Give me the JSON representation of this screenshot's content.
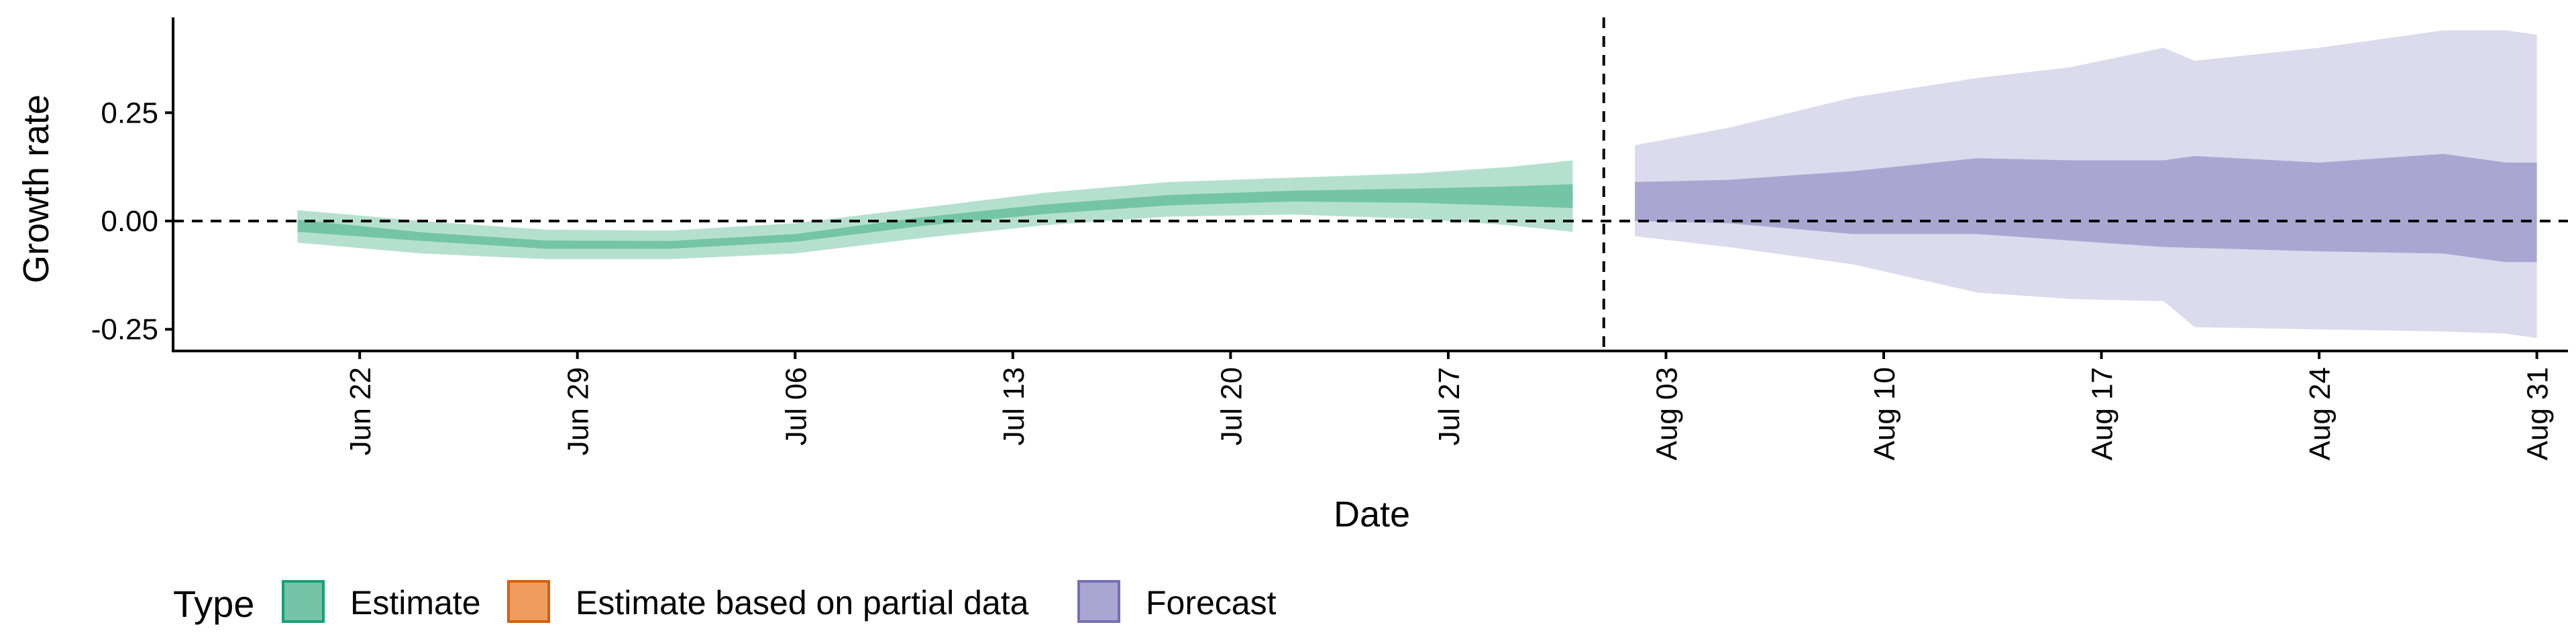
{
  "chart_data": {
    "type": "area",
    "xlabel": "Date",
    "ylabel": "Growth rate",
    "ylim": [
      -0.3,
      0.47
    ],
    "xlim": [
      "2020-06-16",
      "2020-09-01"
    ],
    "grid": false,
    "legend_position": "bottom-left",
    "y_ticks": [
      {
        "value": 0.25,
        "label": "0.25"
      },
      {
        "value": 0.0,
        "label": "0.00"
      },
      {
        "value": -0.25,
        "label": "-0.25"
      }
    ],
    "x_ticks": [
      {
        "date": "2020-06-22",
        "label": "Jun 22"
      },
      {
        "date": "2020-06-29",
        "label": "Jun 29"
      },
      {
        "date": "2020-07-06",
        "label": "Jul 06"
      },
      {
        "date": "2020-07-13",
        "label": "Jul 13"
      },
      {
        "date": "2020-07-20",
        "label": "Jul 20"
      },
      {
        "date": "2020-07-27",
        "label": "Jul 27"
      },
      {
        "date": "2020-08-03",
        "label": "Aug 03"
      },
      {
        "date": "2020-08-10",
        "label": "Aug 10"
      },
      {
        "date": "2020-08-17",
        "label": "Aug 17"
      },
      {
        "date": "2020-08-24",
        "label": "Aug 24"
      },
      {
        "date": "2020-08-31",
        "label": "Aug 31"
      }
    ],
    "reference_lines": {
      "horizontal": 0.0,
      "vertical_date": "2020-08-01"
    },
    "legend": {
      "title": "Type",
      "items": [
        {
          "label": "Estimate",
          "fill": "#74c4a8",
          "stroke": "#1b9e77"
        },
        {
          "label": "Estimate based on partial data",
          "fill": "#ee9d5f",
          "stroke": "#d95f02"
        },
        {
          "label": "Forecast",
          "fill": "#a9a6d2",
          "stroke": "#7570b3"
        }
      ]
    },
    "series": [
      {
        "name": "Estimate",
        "outer_color": "#b5e0d0",
        "inner_color": "#74c4a8",
        "points": [
          {
            "date": "2020-06-20",
            "outer": [
              -0.05,
              0.025
            ],
            "inner": [
              -0.025,
              0.003
            ]
          },
          {
            "date": "2020-06-24",
            "outer": [
              -0.075,
              0.0
            ],
            "inner": [
              -0.046,
              -0.026
            ]
          },
          {
            "date": "2020-06-28",
            "outer": [
              -0.088,
              -0.02
            ],
            "inner": [
              -0.064,
              -0.045
            ]
          },
          {
            "date": "2020-07-02",
            "outer": [
              -0.088,
              -0.022
            ],
            "inner": [
              -0.064,
              -0.046
            ]
          },
          {
            "date": "2020-07-06",
            "outer": [
              -0.075,
              -0.005
            ],
            "inner": [
              -0.048,
              -0.03
            ]
          },
          {
            "date": "2020-07-10",
            "outer": [
              -0.04,
              0.03
            ],
            "inner": [
              -0.012,
              0.008
            ]
          },
          {
            "date": "2020-07-14",
            "outer": [
              -0.01,
              0.065
            ],
            "inner": [
              0.016,
              0.038
            ]
          },
          {
            "date": "2020-07-18",
            "outer": [
              0.01,
              0.09
            ],
            "inner": [
              0.036,
              0.06
            ]
          },
          {
            "date": "2020-07-22",
            "outer": [
              0.015,
              0.1
            ],
            "inner": [
              0.045,
              0.07
            ]
          },
          {
            "date": "2020-07-26",
            "outer": [
              0.005,
              0.11
            ],
            "inner": [
              0.042,
              0.075
            ]
          },
          {
            "date": "2020-07-29",
            "outer": [
              -0.01,
              0.125
            ],
            "inner": [
              0.035,
              0.08
            ]
          },
          {
            "date": "2020-07-31",
            "outer": [
              -0.025,
              0.14
            ],
            "inner": [
              0.03,
              0.085
            ]
          }
        ]
      },
      {
        "name": "Forecast",
        "outer_color": "#dcdaed",
        "inner_color": "#a9a6d2",
        "points": [
          {
            "date": "2020-08-02",
            "outer": [
              -0.035,
              0.175
            ],
            "inner": [
              0.0,
              0.09
            ]
          },
          {
            "date": "2020-08-05",
            "outer": [
              -0.06,
              0.215
            ],
            "inner": [
              -0.005,
              0.095
            ]
          },
          {
            "date": "2020-08-09",
            "outer": [
              -0.1,
              0.285
            ],
            "inner": [
              -0.03,
              0.115
            ]
          },
          {
            "date": "2020-08-13",
            "outer": [
              -0.165,
              0.33
            ],
            "inner": [
              -0.03,
              0.145
            ]
          },
          {
            "date": "2020-08-16",
            "outer": [
              -0.18,
              0.355
            ],
            "inner": [
              -0.045,
              0.14
            ]
          },
          {
            "date": "2020-08-19",
            "outer": [
              -0.185,
              0.4
            ],
            "inner": [
              -0.06,
              0.14
            ]
          },
          {
            "date": "2020-08-20",
            "outer": [
              -0.245,
              0.37
            ],
            "inner": [
              -0.062,
              0.15
            ]
          },
          {
            "date": "2020-08-24",
            "outer": [
              -0.25,
              0.4
            ],
            "inner": [
              -0.07,
              0.135
            ]
          },
          {
            "date": "2020-08-28",
            "outer": [
              -0.255,
              0.44
            ],
            "inner": [
              -0.075,
              0.155
            ]
          },
          {
            "date": "2020-08-30",
            "outer": [
              -0.26,
              0.44
            ],
            "inner": [
              -0.095,
              0.135
            ]
          },
          {
            "date": "2020-08-31",
            "outer": [
              -0.27,
              0.43
            ],
            "inner": [
              -0.095,
              0.135
            ]
          }
        ]
      }
    ]
  }
}
